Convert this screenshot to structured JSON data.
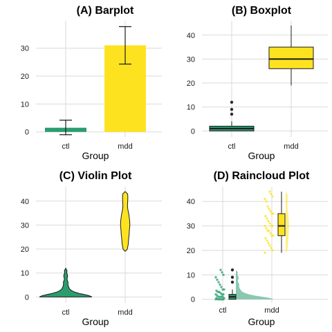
{
  "colors": {
    "ctl": "#2a9d6f",
    "mdd": "#fde31f",
    "outline": "#1a1a1a",
    "grid": "#d9d9d9",
    "dark_point": "#2b2b2b"
  },
  "chart_data": [
    {
      "type": "bar",
      "title": "(A) Barplot",
      "xlabel": "Group",
      "categories": [
        "ctl",
        "mdd"
      ],
      "values": [
        1.5,
        31
      ],
      "error_bars": [
        [
          -1,
          4.2
        ],
        [
          24.3,
          37.7
        ]
      ],
      "ylim": [
        -1.8,
        39.8
      ],
      "yticks": [
        0,
        10,
        20,
        30
      ],
      "grid": true
    },
    {
      "type": "box",
      "title": "(B) Boxplot",
      "xlabel": "Group",
      "categories": [
        "ctl",
        "mdd"
      ],
      "boxes": [
        {
          "group": "ctl",
          "min": 0,
          "q1": 0,
          "median": 1,
          "q3": 2,
          "max": 4,
          "outliers": [
            7,
            9,
            12
          ]
        },
        {
          "group": "mdd",
          "min": 19,
          "q1": 26,
          "median": 30,
          "q3": 35,
          "max": 44,
          "outliers": []
        }
      ],
      "ylim": [
        -2.5,
        46
      ],
      "yticks": [
        0,
        10,
        20,
        30,
        40
      ],
      "grid": true
    },
    {
      "type": "violin",
      "title": "(C) Violin Plot",
      "xlabel": "Group",
      "categories": [
        "ctl",
        "mdd"
      ],
      "violins": [
        {
          "group": "ctl",
          "profile": [
            [
              0,
              1.0
            ],
            [
              0.5,
              0.9
            ],
            [
              1,
              0.72
            ],
            [
              1.5,
              0.5
            ],
            [
              2,
              0.35
            ],
            [
              2.5,
              0.25
            ],
            [
              3,
              0.18
            ],
            [
              3.5,
              0.14
            ],
            [
              4,
              0.12
            ],
            [
              4.5,
              0.1
            ],
            [
              5,
              0.09
            ],
            [
              5.5,
              0.085
            ],
            [
              6,
              0.09
            ],
            [
              6.5,
              0.08
            ],
            [
              7,
              0.06
            ],
            [
              7.5,
              0.05
            ],
            [
              8,
              0.06
            ],
            [
              8.5,
              0.07
            ],
            [
              9,
              0.075
            ],
            [
              9.5,
              0.06
            ],
            [
              10,
              0.04
            ],
            [
              11,
              0.05
            ],
            [
              12,
              0.0
            ]
          ]
        },
        {
          "group": "mdd",
          "profile": [
            [
              19,
              0.0
            ],
            [
              20,
              0.28
            ],
            [
              22,
              0.4
            ],
            [
              24,
              0.45
            ],
            [
              26,
              0.52
            ],
            [
              28,
              0.55
            ],
            [
              30,
              0.62
            ],
            [
              32,
              0.58
            ],
            [
              34,
              0.5
            ],
            [
              35,
              0.45
            ],
            [
              36,
              0.38
            ],
            [
              37,
              0.33
            ],
            [
              38,
              0.3
            ],
            [
              39,
              0.32
            ],
            [
              40,
              0.33
            ],
            [
              41,
              0.35
            ],
            [
              42,
              0.35
            ],
            [
              43,
              0.32
            ],
            [
              44,
              0.0
            ]
          ]
        }
      ],
      "ylim": [
        -2.5,
        46
      ],
      "yticks": [
        0,
        10,
        20,
        30,
        40
      ],
      "grid": true
    },
    {
      "type": "raincloud",
      "title": "(D) Raincloud Plot",
      "xlabel": "Group",
      "categories": [
        "ctl",
        "mdd"
      ],
      "boxes": [
        {
          "group": "ctl",
          "min": 0,
          "q1": 0,
          "median": 1,
          "q3": 2,
          "max": 4,
          "outliers": [
            7,
            9,
            12
          ]
        },
        {
          "group": "mdd",
          "min": 19,
          "q1": 26,
          "median": 30,
          "q3": 35,
          "max": 44,
          "outliers": []
        }
      ],
      "points": {
        "ctl": [
          0,
          0,
          0,
          0,
          0,
          0,
          0.5,
          0.5,
          1,
          1,
          1,
          1,
          1.5,
          2,
          2,
          2,
          2.5,
          3,
          3,
          3.5,
          4,
          4,
          5,
          6,
          7,
          8,
          9,
          10,
          11,
          12
        ],
        "mdd": [
          19,
          20,
          21,
          22,
          23,
          24,
          25,
          26,
          26,
          27,
          28,
          28,
          29,
          30,
          30,
          30,
          31,
          32,
          33,
          34,
          35,
          35,
          36,
          37,
          38,
          40,
          41,
          42,
          43,
          44
        ]
      },
      "ylim": [
        -1.5,
        46
      ],
      "yticks": [
        0,
        10,
        20,
        30,
        40
      ],
      "grid": true
    }
  ]
}
